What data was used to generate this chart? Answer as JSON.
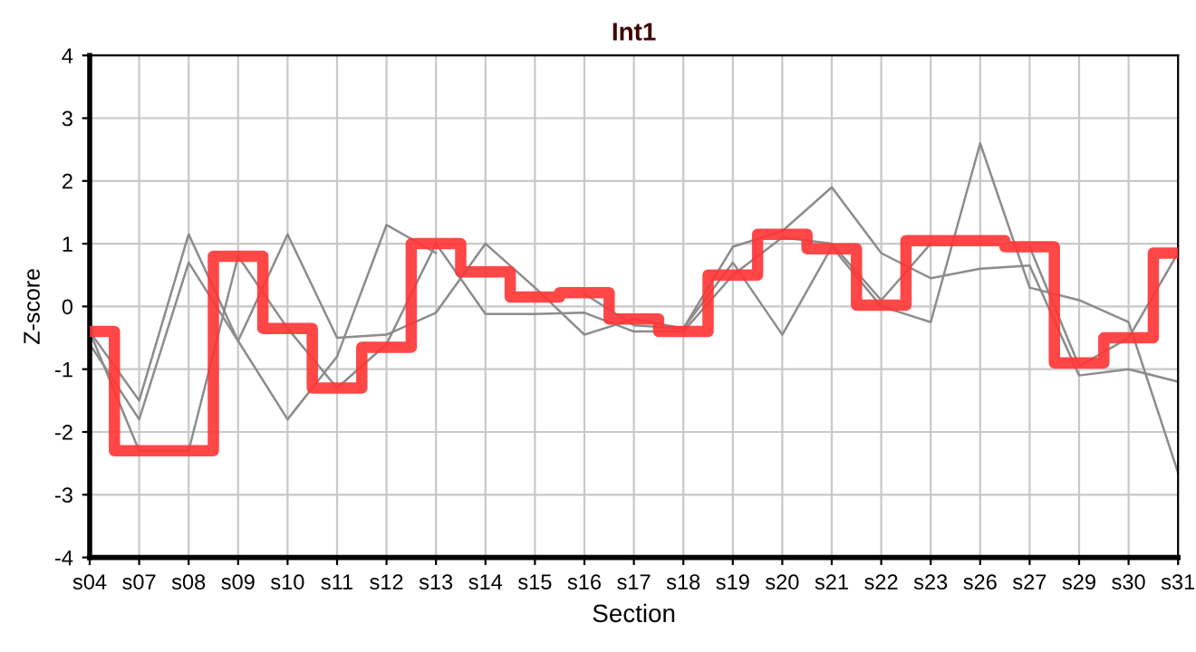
{
  "chart_data": {
    "type": "line",
    "title": "Int1",
    "xlabel": "Section",
    "ylabel": "Z-score",
    "categories": [
      "s04",
      "s07",
      "s08",
      "s09",
      "s10",
      "s11",
      "s12",
      "s13",
      "s14",
      "s15",
      "s16",
      "s17",
      "s18",
      "s19",
      "s20",
      "s21",
      "s22",
      "s23",
      "s26",
      "s27",
      "s29",
      "s30",
      "s31"
    ],
    "series": [
      {
        "color": "#8c8c8c",
        "values": [
          -0.4,
          -1.5,
          1.15,
          -0.55,
          1.15,
          -0.5,
          -0.45,
          -0.1,
          1.0,
          0.3,
          -0.45,
          -0.2,
          -0.35,
          0.95,
          1.2,
          1.9,
          0.85,
          0.45,
          0.6,
          0.65,
          -1.1,
          -1.0,
          -1.2
        ]
      },
      {
        "color": "#8c8c8c",
        "values": [
          -0.6,
          -1.8,
          0.7,
          -0.55,
          -1.8,
          -0.8,
          1.3,
          0.85,
          null,
          null,
          0.2,
          -0.3,
          -0.35,
          0.7,
          -0.45,
          0.95,
          0.0,
          -0.25,
          2.6,
          0.3,
          0.1,
          -0.25,
          -2.65
        ]
      },
      {
        "color": "#8c8c8c",
        "values": [
          -0.4,
          -2.3,
          -2.3,
          0.8,
          -0.35,
          -1.3,
          -0.6,
          1.0,
          -0.12,
          -0.12,
          -0.1,
          -0.4,
          -0.4,
          0.5,
          1.1,
          1.0,
          0.1,
          1.0,
          null,
          0.95,
          -0.95,
          -0.5,
          0.85
        ]
      },
      {
        "type": "step",
        "color": "#ff3333",
        "values": [
          -0.4,
          -2.3,
          -2.3,
          0.8,
          -0.35,
          -1.3,
          -0.65,
          1.0,
          0.55,
          0.15,
          0.22,
          -0.2,
          -0.4,
          0.5,
          1.15,
          0.92,
          0.02,
          1.05,
          1.05,
          0.95,
          -0.9,
          -0.5,
          0.85
        ]
      }
    ],
    "ylim": [
      -4,
      4
    ],
    "yticks": [
      -4,
      -3,
      -2,
      -1,
      0,
      1,
      2,
      3,
      4
    ],
    "grid": true
  }
}
